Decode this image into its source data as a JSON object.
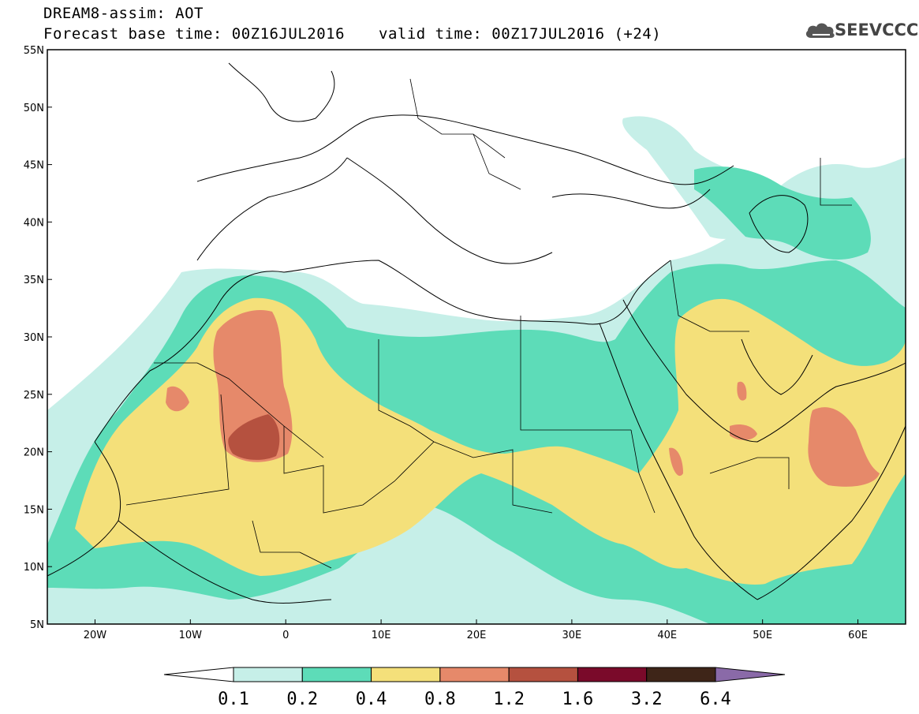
{
  "header": {
    "title": "DREAM8-assim: AOT",
    "base_time": "Forecast base time: 00Z16JUL2016",
    "valid_time": "valid time: 00Z17JUL2016 (+24)",
    "logo_text": "SEEVCCC"
  },
  "map": {
    "lon_range": [
      -25,
      65
    ],
    "lat_range": [
      5,
      55
    ],
    "lat_ticks": [
      "55N",
      "50N",
      "45N",
      "40N",
      "35N",
      "30N",
      "25N",
      "20N",
      "15N",
      "10N",
      "5N"
    ],
    "lon_ticks": [
      "20W",
      "10W",
      "0",
      "10E",
      "20E",
      "30E",
      "40E",
      "50E",
      "60E"
    ],
    "lat_tick_values": [
      55,
      50,
      45,
      40,
      35,
      30,
      25,
      20,
      15,
      10,
      5
    ],
    "lon_tick_values": [
      -20,
      -10,
      0,
      10,
      20,
      30,
      40,
      50,
      60
    ]
  },
  "colorbar": {
    "levels": [
      "0.1",
      "0.2",
      "0.4",
      "0.8",
      "1.2",
      "1.6",
      "3.2",
      "6.4"
    ],
    "colors": [
      "#ffffff",
      "#c6efe8",
      "#5ddcb8",
      "#f4e07a",
      "#e6896a",
      "#b5513f",
      "#7a0a2a",
      "#3e2518",
      "#8a6aa8"
    ],
    "color_meaning": [
      "below 0.1",
      "0.1-0.2",
      "0.2-0.4",
      "0.4-0.8",
      "0.8-1.2",
      "1.2-1.6",
      "1.6-3.2",
      "3.2-6.4",
      "above 6.4"
    ]
  }
}
